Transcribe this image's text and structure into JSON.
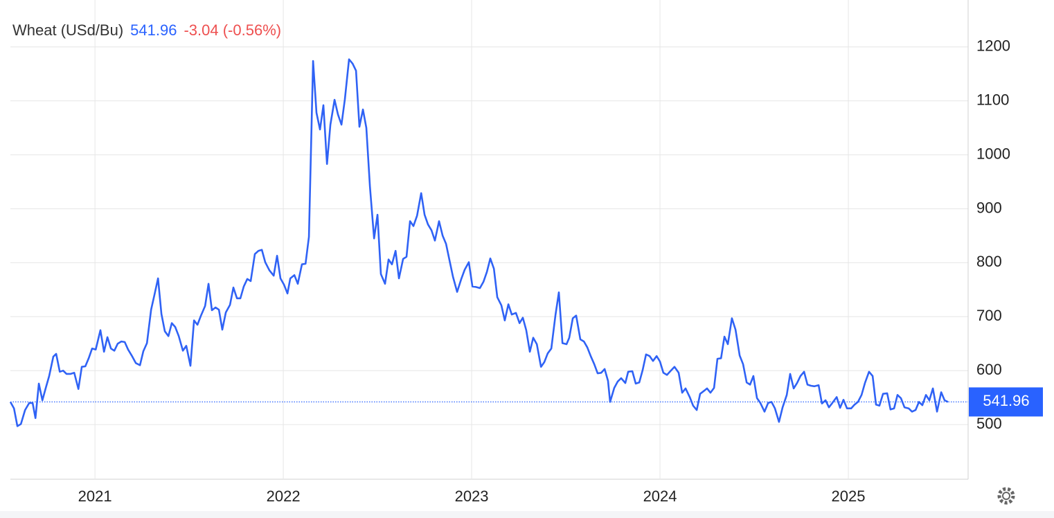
{
  "chart_data": {
    "type": "line",
    "title": "Wheat (USd/Bu)",
    "last_price": 541.96,
    "change": "-3.04 (-0.56%)",
    "price_color": "#2962ff",
    "change_color": "#ee4f4f",
    "xlim": [
      2020.551,
      2025.636
    ],
    "xticks": [
      2021,
      2022,
      2023,
      2024,
      2025
    ],
    "ylim": [
      400,
      1287
    ],
    "yticks": [
      500,
      600,
      700,
      800,
      900,
      1000,
      1100,
      1200
    ],
    "grid": true,
    "x": [
      2020.551,
      2020.57,
      2020.588,
      2020.607,
      2020.629,
      2020.651,
      2020.669,
      2020.684,
      2020.702,
      2020.721,
      2020.739,
      2020.757,
      2020.779,
      2020.794,
      2020.813,
      2020.831,
      2020.849,
      2020.871,
      2020.89,
      2020.912,
      2020.93,
      2020.949,
      2020.967,
      2020.985,
      2021.004,
      2021.029,
      2021.048,
      2021.066,
      2021.085,
      2021.103,
      2021.121,
      2021.14,
      2021.158,
      2021.176,
      2021.195,
      2021.217,
      2021.239,
      2021.257,
      2021.276,
      2021.298,
      2021.316,
      2021.335,
      2021.353,
      2021.371,
      2021.39,
      2021.408,
      2021.426,
      2021.445,
      2021.467,
      2021.485,
      2021.507,
      2021.526,
      2021.544,
      2021.563,
      2021.585,
      2021.603,
      2021.621,
      2021.64,
      2021.658,
      2021.676,
      2021.695,
      2021.717,
      2021.735,
      2021.754,
      2021.772,
      2021.79,
      2021.809,
      2021.827,
      2021.849,
      2021.868,
      2021.886,
      2021.904,
      2021.926,
      2021.949,
      2021.967,
      2021.985,
      2022.004,
      2022.022,
      2022.037,
      2022.059,
      2022.077,
      2022.099,
      2022.118,
      2022.136,
      2022.158,
      2022.176,
      2022.195,
      2022.213,
      2022.232,
      2022.25,
      2022.272,
      2022.29,
      2022.309,
      2022.327,
      2022.349,
      2022.368,
      2022.386,
      2022.404,
      2022.423,
      2022.441,
      2022.46,
      2022.482,
      2022.5,
      2022.518,
      2022.54,
      2022.559,
      2022.577,
      2022.596,
      2022.614,
      2022.636,
      2022.654,
      2022.673,
      2022.691,
      2022.71,
      2022.732,
      2022.75,
      2022.768,
      2022.787,
      2022.805,
      2022.827,
      2022.846,
      2022.864,
      2022.882,
      2022.901,
      2022.923,
      2022.945,
      2022.963,
      2022.985,
      2023.004,
      2023.022,
      2023.044,
      2023.063,
      2023.081,
      2023.099,
      2023.118,
      2023.136,
      2023.158,
      2023.176,
      2023.195,
      2023.213,
      2023.235,
      2023.254,
      2023.272,
      2023.29,
      2023.309,
      2023.327,
      2023.346,
      2023.368,
      2023.386,
      2023.404,
      2023.423,
      2023.445,
      2023.463,
      2023.482,
      2023.504,
      2023.518,
      2023.537,
      2023.555,
      2023.577,
      2023.596,
      2023.614,
      2023.632,
      2023.651,
      2023.669,
      2023.688,
      2023.706,
      2023.724,
      2023.735,
      2023.757,
      2023.776,
      2023.794,
      2023.816,
      2023.831,
      2023.853,
      2023.871,
      2023.89,
      2023.908,
      2023.926,
      2023.945,
      2023.963,
      2023.982,
      2024.0,
      2024.018,
      2024.037,
      2024.055,
      2024.077,
      2024.099,
      2024.118,
      2024.136,
      2024.158,
      2024.176,
      2024.195,
      2024.213,
      2024.232,
      2024.25,
      2024.268,
      2024.287,
      2024.305,
      2024.324,
      2024.342,
      2024.36,
      2024.382,
      2024.401,
      2024.423,
      2024.441,
      2024.46,
      2024.478,
      2024.496,
      2024.515,
      2024.533,
      2024.555,
      2024.574,
      2024.592,
      2024.61,
      2024.632,
      2024.651,
      2024.673,
      2024.691,
      2024.71,
      2024.728,
      2024.746,
      2024.765,
      2024.783,
      2024.801,
      2024.82,
      2024.842,
      2024.86,
      2024.879,
      2024.897,
      2024.915,
      2024.938,
      2024.956,
      2024.974,
      2024.993,
      2025.015,
      2025.033,
      2025.051,
      2025.07,
      2025.088,
      2025.11,
      2025.129,
      2025.147,
      2025.165,
      2025.184,
      2025.206,
      2025.224,
      2025.243,
      2025.261,
      2025.279,
      2025.298,
      2025.32,
      2025.338,
      2025.357,
      2025.375,
      2025.393,
      2025.412,
      2025.43,
      2025.449,
      2025.471,
      2025.493,
      2025.511,
      2025.529
    ],
    "series": [
      {
        "name": "Wheat",
        "color": "#2f62f5",
        "values": [
          542,
          530,
          497,
          501,
          527,
          540,
          540,
          512,
          576,
          545,
          568,
          590,
          626,
          631,
          598,
          600,
          594,
          594,
          596,
          566,
          607,
          608,
          623,
          641,
          639,
          675,
          635,
          662,
          641,
          637,
          650,
          654,
          653,
          639,
          628,
          614,
          610,
          636,
          651,
          713,
          741,
          771,
          705,
          673,
          664,
          688,
          681,
          664,
          637,
          646,
          609,
          693,
          685,
          702,
          720,
          761,
          712,
          717,
          713,
          676,
          708,
          722,
          754,
          734,
          734,
          756,
          770,
          766,
          816,
          822,
          824,
          801,
          786,
          776,
          813,
          771,
          759,
          743,
          771,
          777,
          761,
          797,
          798,
          848,
          1174,
          1078,
          1047,
          1092,
          983,
          1056,
          1102,
          1075,
          1056,
          1103,
          1177,
          1169,
          1156,
          1052,
          1084,
          1050,
          941,
          845,
          889,
          779,
          761,
          806,
          797,
          822,
          771,
          807,
          811,
          877,
          868,
          887,
          929,
          889,
          871,
          860,
          841,
          877,
          850,
          835,
          805,
          774,
          746,
          770,
          787,
          801,
          756,
          755,
          753,
          765,
          783,
          808,
          789,
          736,
          721,
          693,
          723,
          704,
          707,
          688,
          698,
          675,
          635,
          661,
          649,
          607,
          616,
          632,
          641,
          703,
          745,
          651,
          649,
          661,
          697,
          702,
          658,
          654,
          643,
          627,
          612,
          595,
          596,
          603,
          581,
          542,
          568,
          580,
          586,
          577,
          598,
          599,
          576,
          578,
          601,
          630,
          627,
          618,
          627,
          617,
          596,
          592,
          599,
          607,
          596,
          559,
          567,
          551,
          535,
          527,
          557,
          562,
          567,
          559,
          568,
          622,
          623,
          663,
          649,
          697,
          676,
          628,
          612,
          578,
          574,
          590,
          549,
          540,
          524,
          540,
          542,
          530,
          505,
          532,
          555,
          594,
          567,
          577,
          590,
          598,
          574,
          572,
          571,
          573,
          539,
          545,
          532,
          540,
          551,
          531,
          546,
          530,
          530,
          537,
          542,
          555,
          577,
          598,
          590,
          537,
          535,
          557,
          558,
          528,
          530,
          555,
          549,
          532,
          530,
          524,
          527,
          542,
          536,
          555,
          545,
          567,
          524,
          560,
          545,
          541.96
        ]
      }
    ]
  }
}
